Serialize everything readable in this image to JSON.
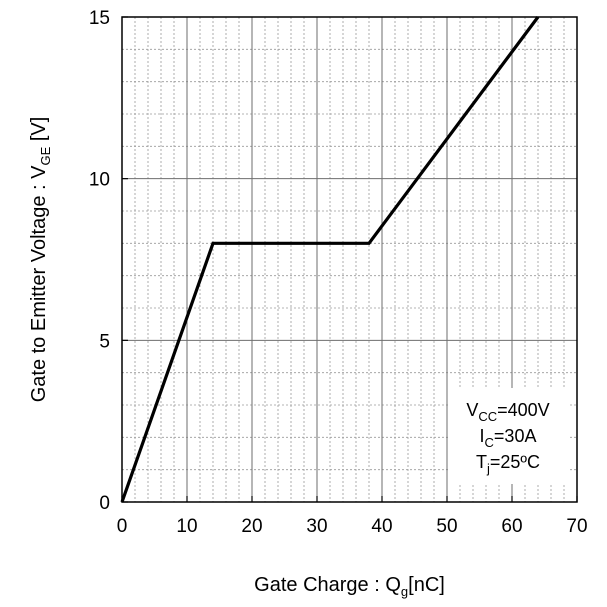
{
  "chart_data": {
    "type": "line",
    "title": "",
    "xlabel": {
      "main": "Gate Charge : Q",
      "sub": "g",
      "unit": "[nC]"
    },
    "ylabel": {
      "main": "Gate to Emitter Voltage : V",
      "sub": "GE",
      "unit": " [V]"
    },
    "xlim": [
      0,
      70
    ],
    "ylim": [
      0,
      15
    ],
    "x_major_ticks": [
      0,
      10,
      20,
      30,
      40,
      50,
      60,
      70
    ],
    "y_major_ticks": [
      0,
      5,
      10,
      15
    ],
    "x_minor_step": 2,
    "y_minor_step": 1,
    "grid": true,
    "line_color": "#000000",
    "series": [
      {
        "x": [
          0,
          14,
          38,
          64
        ],
        "y": [
          0,
          8,
          8,
          15
        ]
      }
    ],
    "annotations": [
      {
        "main": "V",
        "sub": "CC",
        "rest": "=400V"
      },
      {
        "main": "I",
        "sub": "C",
        "rest": "=30A"
      },
      {
        "main": "T",
        "sub": "j",
        "rest": "=25ºC"
      }
    ]
  }
}
